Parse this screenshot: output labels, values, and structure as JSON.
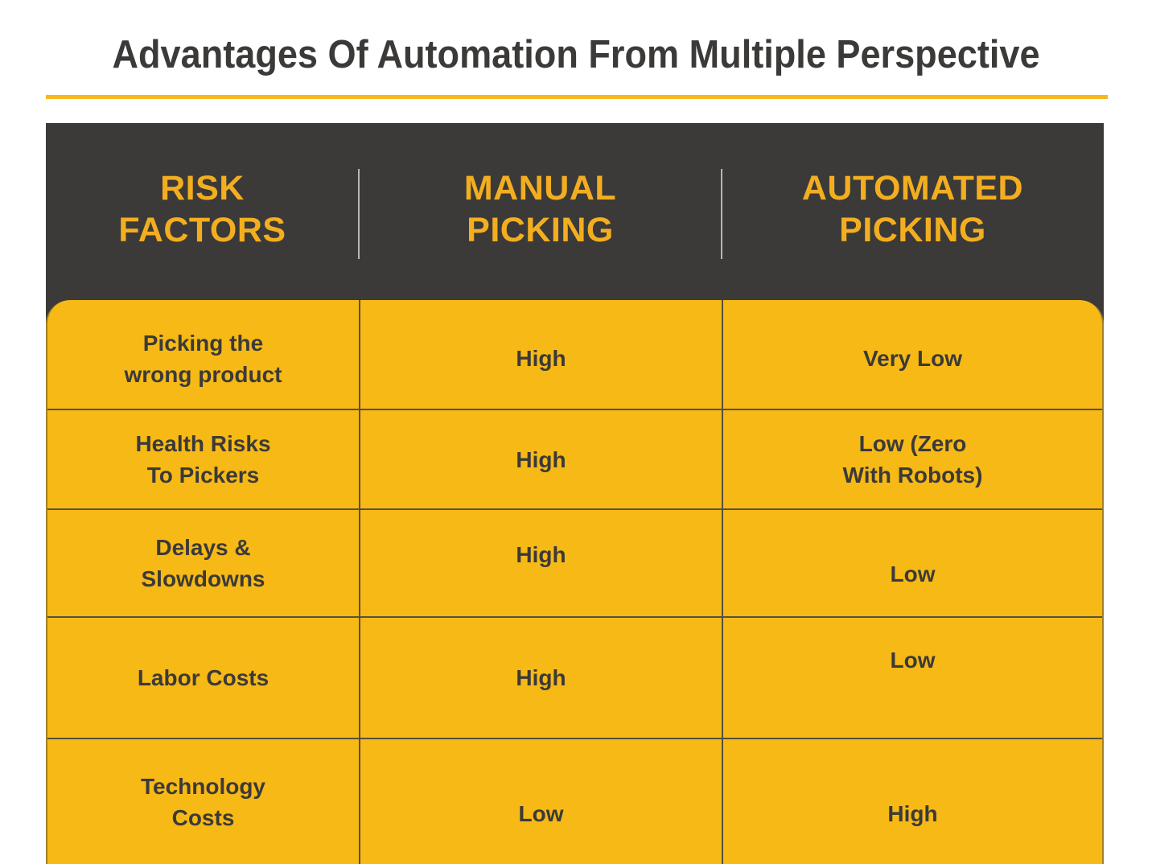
{
  "title": "Advantages Of Automation From Multiple Perspective",
  "colors": {
    "background": "#FFFFFF",
    "dark_panel": "#3B3A38",
    "header_text_gold": "#F3AE20",
    "body_yellow": "#F7B916",
    "title_underline_gold": "#F6B81E",
    "cell_border": "#57503C",
    "header_divider": "#CFCCC5",
    "title_text": "#3B3A38",
    "body_text": "#3B3A38"
  },
  "table": {
    "columns": [
      {
        "id": "risk-factors",
        "label": "RISK\nFACTORS"
      },
      {
        "id": "manual-picking",
        "label": "MANUAL\nPICKING"
      },
      {
        "id": "automated-picking",
        "label": "AUTOMATED\nPICKING"
      }
    ],
    "rows": [
      {
        "factor": "Picking the\nwrong product",
        "manual": "High",
        "automated": "Very Low"
      },
      {
        "factor": "Health Risks\nTo Pickers",
        "manual": "High",
        "automated": "Low (Zero\nWith Robots)"
      },
      {
        "factor": "Delays &\nSlowdowns",
        "manual": "High",
        "automated": "Low"
      },
      {
        "factor": "Labor Costs",
        "manual": "High",
        "automated": "Low"
      },
      {
        "factor": "Technology\nCosts",
        "manual": "Low",
        "automated": "High"
      }
    ]
  },
  "chart_data": {
    "type": "table",
    "title": "Advantages Of Automation From Multiple Perspective",
    "columns": [
      "Risk Factors",
      "Manual Picking",
      "Automated Picking"
    ],
    "rows": [
      [
        "Picking the wrong product",
        "High",
        "Very Low"
      ],
      [
        "Health Risks To Pickers",
        "High",
        "Low (Zero With Robots)"
      ],
      [
        "Delays & Slowdowns",
        "High",
        "Low"
      ],
      [
        "Labor Costs",
        "High",
        "Low"
      ],
      [
        "Technology Costs",
        "Low",
        "High"
      ]
    ]
  }
}
